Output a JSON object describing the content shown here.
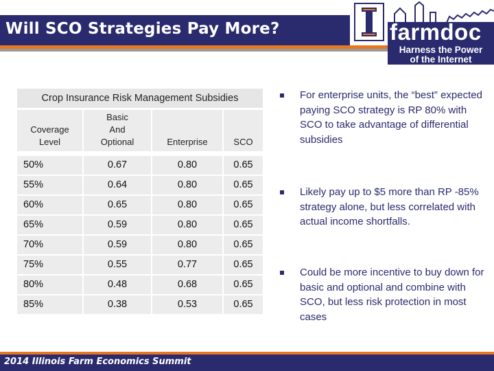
{
  "slide": {
    "title": "Will SCO Strategies Pay More?"
  },
  "logo": {
    "word": "farmdoc",
    "tagline_line1": "Harness the Power",
    "tagline_line2": "of the Internet"
  },
  "table": {
    "caption": "Crop Insurance Risk Management Subsidies",
    "headers": {
      "coverage": [
        "Coverage",
        "Level"
      ],
      "basic": [
        "Basic",
        "And",
        "Optional"
      ],
      "enterprise": "Enterprise",
      "sco": "SCO"
    },
    "rows": [
      {
        "level": "50%",
        "basic": "0.67",
        "enterprise": "0.80",
        "sco": "0.65"
      },
      {
        "level": "55%",
        "basic": "0.64",
        "enterprise": "0.80",
        "sco": "0.65"
      },
      {
        "level": "60%",
        "basic": "0.65",
        "enterprise": "0.80",
        "sco": "0.65"
      },
      {
        "level": "65%",
        "basic": "0.59",
        "enterprise": "0.80",
        "sco": "0.65"
      },
      {
        "level": "70%",
        "basic": "0.59",
        "enterprise": "0.80",
        "sco": "0.65"
      },
      {
        "level": "75%",
        "basic": "0.55",
        "enterprise": "0.77",
        "sco": "0.65"
      },
      {
        "level": "80%",
        "basic": "0.48",
        "enterprise": "0.68",
        "sco": "0.65"
      },
      {
        "level": "85%",
        "basic": "0.38",
        "enterprise": "0.53",
        "sco": "0.65"
      }
    ]
  },
  "bullets": [
    {
      "text": "For enterprise units, the “best” expected paying SCO strategy is RP 80% with SCO to take advantage of differential subsidies"
    },
    {
      "text": "Likely pay  up to $5 more than RP -85% strategy alone, but less correlated with actual income shortfalls."
    },
    {
      "text": "Could be more incentive to buy down for basic and optional and combine with SCO, but less risk protection in most cases"
    }
  ],
  "footer": {
    "text": "2014 Illinois Farm Economics Summit"
  },
  "colors": {
    "navy": "#2a2a6e",
    "orange": "#e87722",
    "cell_gray": "#ececec"
  },
  "icons": {
    "logo_mark": "illinois-block-i-icon",
    "skyline": "farm-skyline-icon",
    "bullet": "square-bullet-icon"
  }
}
